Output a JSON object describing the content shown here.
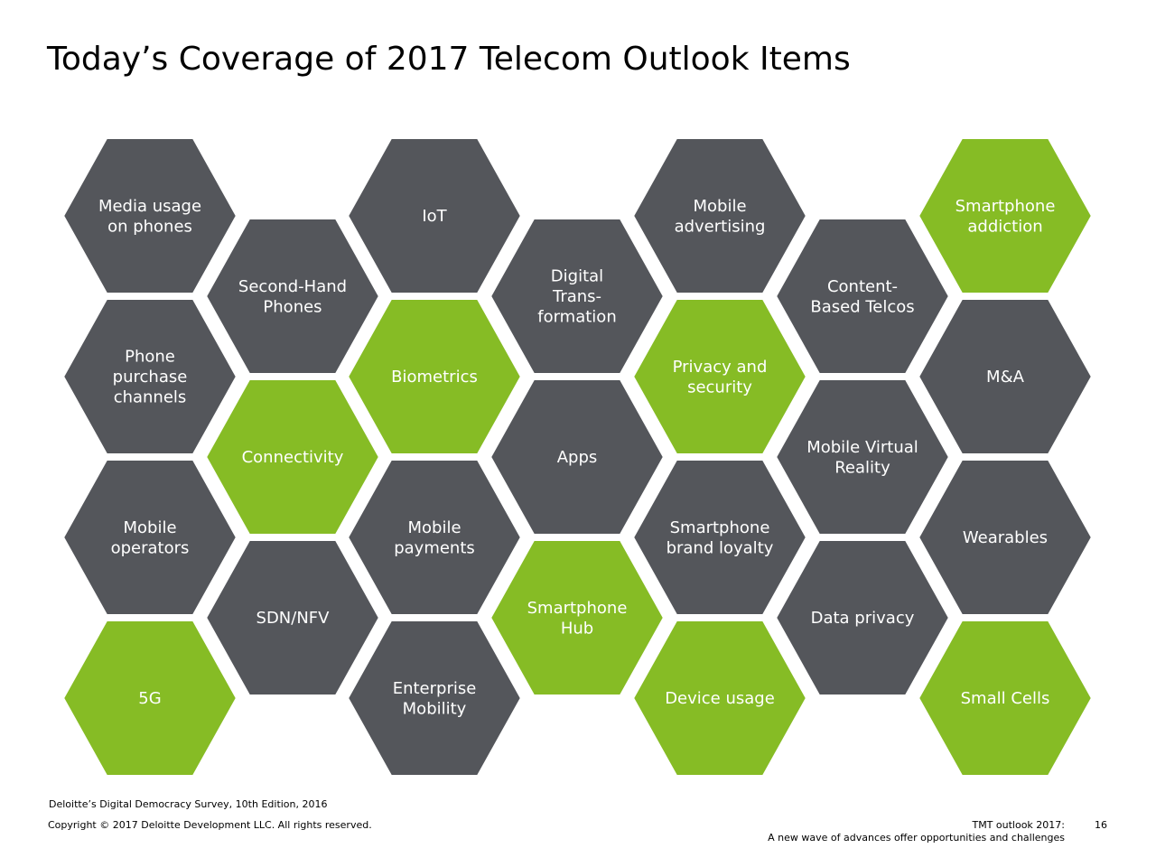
{
  "title": "Today’s Coverage of 2017 Telecom Outlook Items",
  "colors": {
    "dark": "#54565b",
    "green": "#86bc25",
    "text": "#ffffff"
  },
  "hexagons": [
    {
      "lines": [
        "Media usage",
        "on phones"
      ],
      "color": "dark"
    },
    {
      "lines": [
        "Phone",
        "purchase",
        "channels"
      ],
      "color": "dark"
    },
    {
      "lines": [
        "Mobile",
        "operators"
      ],
      "color": "dark"
    },
    {
      "lines": [
        "5G"
      ],
      "color": "green"
    },
    {
      "lines": [
        "Second-Hand",
        "Phones"
      ],
      "color": "dark"
    },
    {
      "lines": [
        "Connectivity"
      ],
      "color": "green"
    },
    {
      "lines": [
        "SDN/NFV"
      ],
      "color": "dark"
    },
    {
      "lines": [
        "IoT"
      ],
      "color": "dark"
    },
    {
      "lines": [
        "Biometrics"
      ],
      "color": "green"
    },
    {
      "lines": [
        "Mobile",
        "payments"
      ],
      "color": "dark"
    },
    {
      "lines": [
        "Enterprise",
        "Mobility"
      ],
      "color": "dark"
    },
    {
      "lines": [
        "Digital",
        "Trans-",
        "formation"
      ],
      "color": "dark"
    },
    {
      "lines": [
        "Apps"
      ],
      "color": "dark"
    },
    {
      "lines": [
        "Smartphone",
        "Hub"
      ],
      "color": "green"
    },
    {
      "lines": [
        "Mobile",
        "advertising"
      ],
      "color": "dark"
    },
    {
      "lines": [
        "Privacy and",
        "security"
      ],
      "color": "green"
    },
    {
      "lines": [
        "Smartphone",
        "brand loyalty"
      ],
      "color": "dark"
    },
    {
      "lines": [
        "Device usage"
      ],
      "color": "green"
    },
    {
      "lines": [
        "Content-",
        "Based Telcos"
      ],
      "color": "dark"
    },
    {
      "lines": [
        "Mobile Virtual",
        "Reality"
      ],
      "color": "dark"
    },
    {
      "lines": [
        "Data privacy"
      ],
      "color": "dark"
    },
    {
      "lines": [
        "Smartphone",
        "addiction"
      ],
      "color": "green"
    },
    {
      "lines": [
        "M&A"
      ],
      "color": "dark"
    },
    {
      "lines": [
        "Wearables"
      ],
      "color": "dark"
    },
    {
      "lines": [
        "Small Cells"
      ],
      "color": "green"
    }
  ],
  "footer": {
    "source": "Deloitte’s Digital Democracy Survey, 10th Edition, 2016",
    "copyright": "Copyright © 2017 Deloitte Development LLC. All rights reserved.",
    "outlook_line1": "TMT outlook 2017:",
    "outlook_line2": "A new wave of advances offer opportunities and challenges",
    "page_number": "16"
  }
}
